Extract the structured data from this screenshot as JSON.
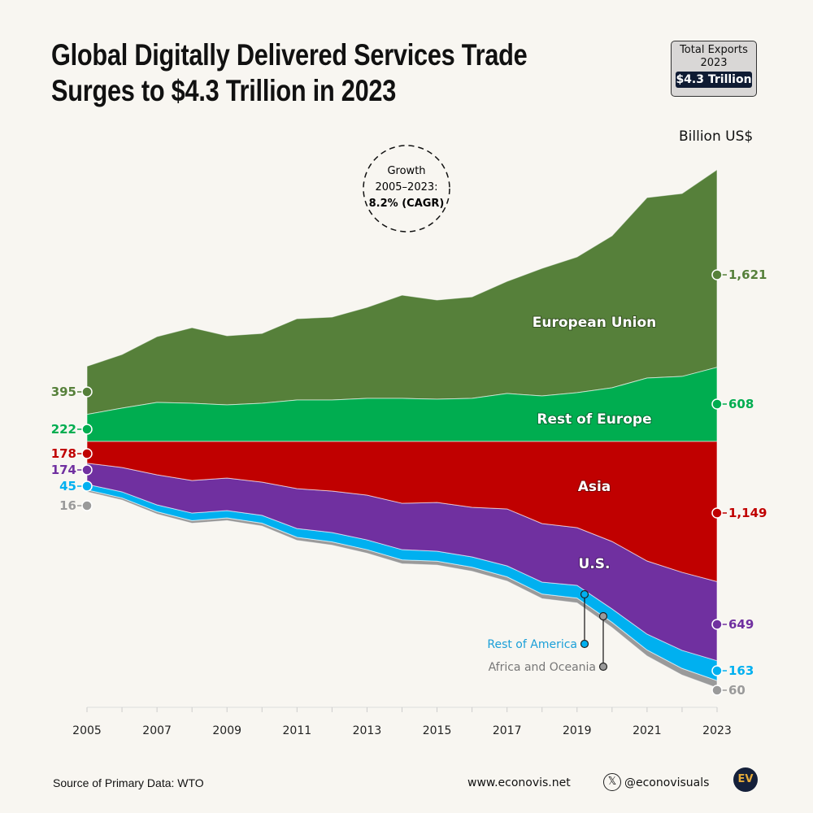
{
  "header": {
    "title_line1": "Global Digitally Delivered Services Trade",
    "title_line2": "Surges to $4.3 Trillion in 2023",
    "badge": {
      "line1": "Total Exports",
      "line2": "2023",
      "value": "$4.3 Trillion"
    },
    "unit": "Billion US$"
  },
  "growth": {
    "line1": "Growth",
    "line2": "2005–2023:",
    "line3": "8.2% (CAGR)"
  },
  "chart_data": {
    "type": "area",
    "stacked": true,
    "x": [
      2005,
      2006,
      2007,
      2008,
      2009,
      2010,
      2011,
      2012,
      2013,
      2014,
      2015,
      2016,
      2017,
      2018,
      2019,
      2020,
      2021,
      2022,
      2023
    ],
    "xticks": [
      "2005",
      "2007",
      "2009",
      "2011",
      "2013",
      "2015",
      "2017",
      "2019",
      "2021",
      "2023"
    ],
    "ylabel": "Billion US$",
    "series": [
      {
        "name": "European Union",
        "color": "#56803a",
        "direction": "up",
        "order": 2,
        "values": [
          395,
          440,
          540,
          620,
          567,
          573,
          667,
          680,
          747,
          847,
          813,
          833,
          920,
          1047,
          1113,
          1247,
          1480,
          1500,
          1621
        ],
        "start_label": "395",
        "end_label": "1,621"
      },
      {
        "name": "Rest of Europe",
        "color": "#00ad50",
        "direction": "up",
        "order": 1,
        "values": [
          222,
          273,
          320,
          313,
          300,
          313,
          340,
          340,
          353,
          353,
          347,
          353,
          393,
          373,
          400,
          440,
          520,
          533,
          608
        ],
        "start_label": "222",
        "end_label": "608"
      },
      {
        "name": "Asia",
        "color": "#c00000",
        "direction": "down",
        "order": 1,
        "values": [
          178,
          213,
          273,
          320,
          300,
          333,
          387,
          407,
          440,
          507,
          500,
          540,
          553,
          673,
          707,
          820,
          980,
          1073,
          1149
        ],
        "start_label": "178",
        "end_label": "1,149"
      },
      {
        "name": "U.S.",
        "color": "#7030a0",
        "direction": "down",
        "order": 2,
        "values": [
          174,
          200,
          247,
          267,
          267,
          273,
          327,
          340,
          367,
          380,
          400,
          407,
          467,
          480,
          473,
          553,
          600,
          640,
          649
        ],
        "start_label": "174",
        "end_label": "649"
      },
      {
        "name": "Rest of America",
        "color": "#00b0f0",
        "direction": "down",
        "order": 3,
        "values": [
          45,
          50,
          56,
          62,
          60,
          64,
          72,
          76,
          80,
          84,
          82,
          84,
          90,
          98,
          104,
          110,
          130,
          148,
          163
        ],
        "start_label": "45",
        "end_label": "163"
      },
      {
        "name": "Africa and Oceania",
        "color": "#9a9a9a",
        "direction": "down",
        "order": 4,
        "values": [
          16,
          18,
          20,
          22,
          22,
          24,
          26,
          28,
          30,
          32,
          32,
          34,
          36,
          38,
          40,
          44,
          50,
          55,
          60
        ],
        "start_label": "16",
        "end_label": "60"
      }
    ]
  },
  "footer": {
    "source": "Source of Primary Data: WTO",
    "website": "www.econovis.net",
    "x_icon": "x-logo-icon",
    "handle": "@econovisuals",
    "logo": "EV"
  }
}
